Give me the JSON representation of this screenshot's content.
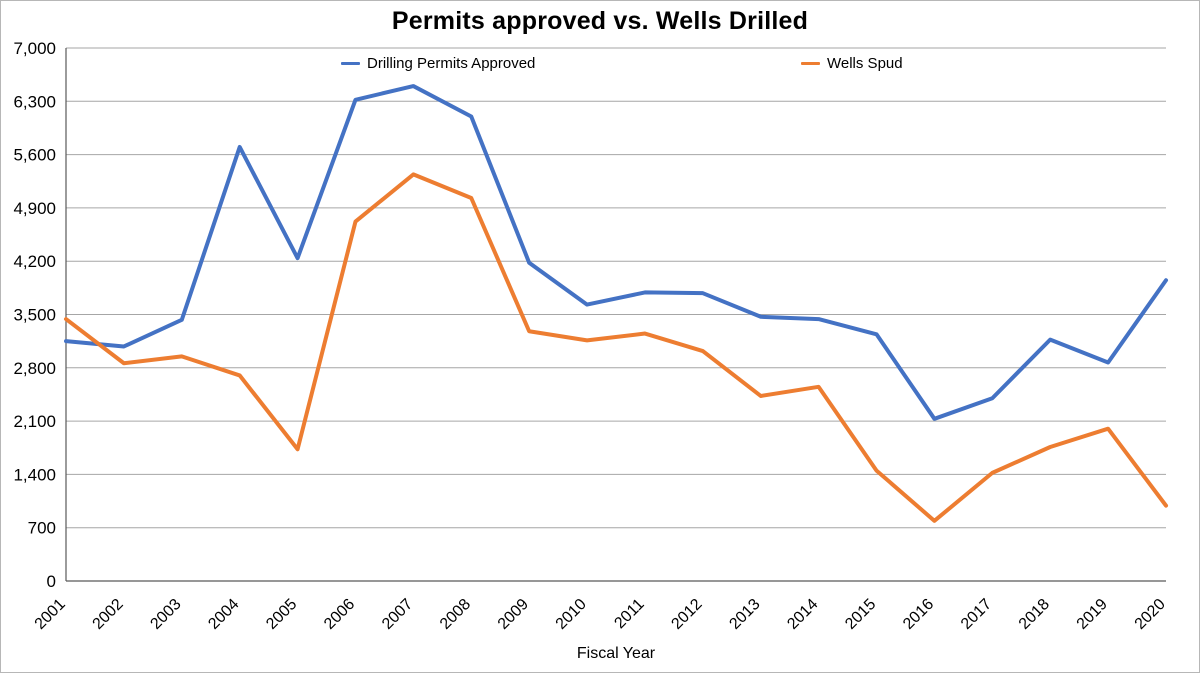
{
  "chart": {
    "title": "Permits approved vs. Wells Drilled",
    "xlabel": "Fiscal Year"
  },
  "chart_data": {
    "type": "line",
    "title": "Permits approved vs. Wells Drilled",
    "xlabel": "Fiscal Year",
    "ylabel": "",
    "categories": [
      "2001",
      "2002",
      "2003",
      "2004",
      "2005",
      "2006",
      "2007",
      "2008",
      "2009",
      "2010",
      "2011",
      "2012",
      "2013",
      "2014",
      "2015",
      "2016",
      "2017",
      "2018",
      "2019",
      "2020"
    ],
    "series": [
      {
        "name": "Drilling Permits Approved",
        "color": "#4472C4",
        "values": [
          3150,
          3080,
          3430,
          5700,
          4240,
          6320,
          6500,
          6100,
          4180,
          3630,
          3790,
          3780,
          3470,
          3440,
          3240,
          2130,
          2400,
          3170,
          2870,
          3950
        ]
      },
      {
        "name": "Wells Spud",
        "color": "#ED7D31",
        "values": [
          3440,
          2860,
          2950,
          2700,
          1730,
          4720,
          5340,
          5030,
          3280,
          3160,
          3250,
          3020,
          2430,
          2550,
          1450,
          790,
          1420,
          1760,
          2000,
          990
        ]
      }
    ],
    "ylim": [
      0,
      7000
    ],
    "y_tick_step": 700,
    "grid": true,
    "legend_position": "top-inside"
  },
  "colors": {
    "gridline": "#a6a6a6",
    "axis": "#595959",
    "text": "#000000",
    "background": "#ffffff"
  }
}
